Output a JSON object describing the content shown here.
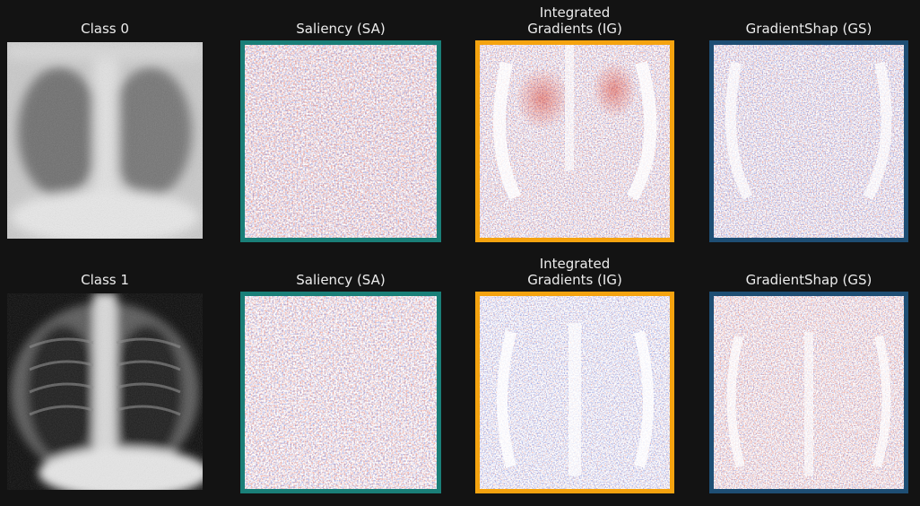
{
  "rows": [
    {
      "class_title": "Class 0",
      "panels": [
        {
          "title": "Saliency (SA)",
          "border_color": "#1a7f78",
          "pattern": "sa"
        },
        {
          "title_line1": "Integrated",
          "title_line2": "Gradients (IG)",
          "border_color": "#f5a30f",
          "pattern": "ig"
        },
        {
          "title": "GradientShap (GS)",
          "border_color": "#1e4e74",
          "pattern": "gs"
        }
      ]
    },
    {
      "class_title": "Class 1",
      "panels": [
        {
          "title": "Saliency (SA)",
          "border_color": "#1a7f78",
          "pattern": "sa"
        },
        {
          "title_line1": "Integrated",
          "title_line2": "Gradients (IG)",
          "border_color": "#f5a30f",
          "pattern": "ig"
        },
        {
          "title": "GradientShap (GS)",
          "border_color": "#1e4e74",
          "pattern": "gs"
        }
      ]
    }
  ],
  "colors": {
    "background": "#131313",
    "positive_attribution": "#d7301f",
    "negative_attribution": "#2b3fbf"
  }
}
